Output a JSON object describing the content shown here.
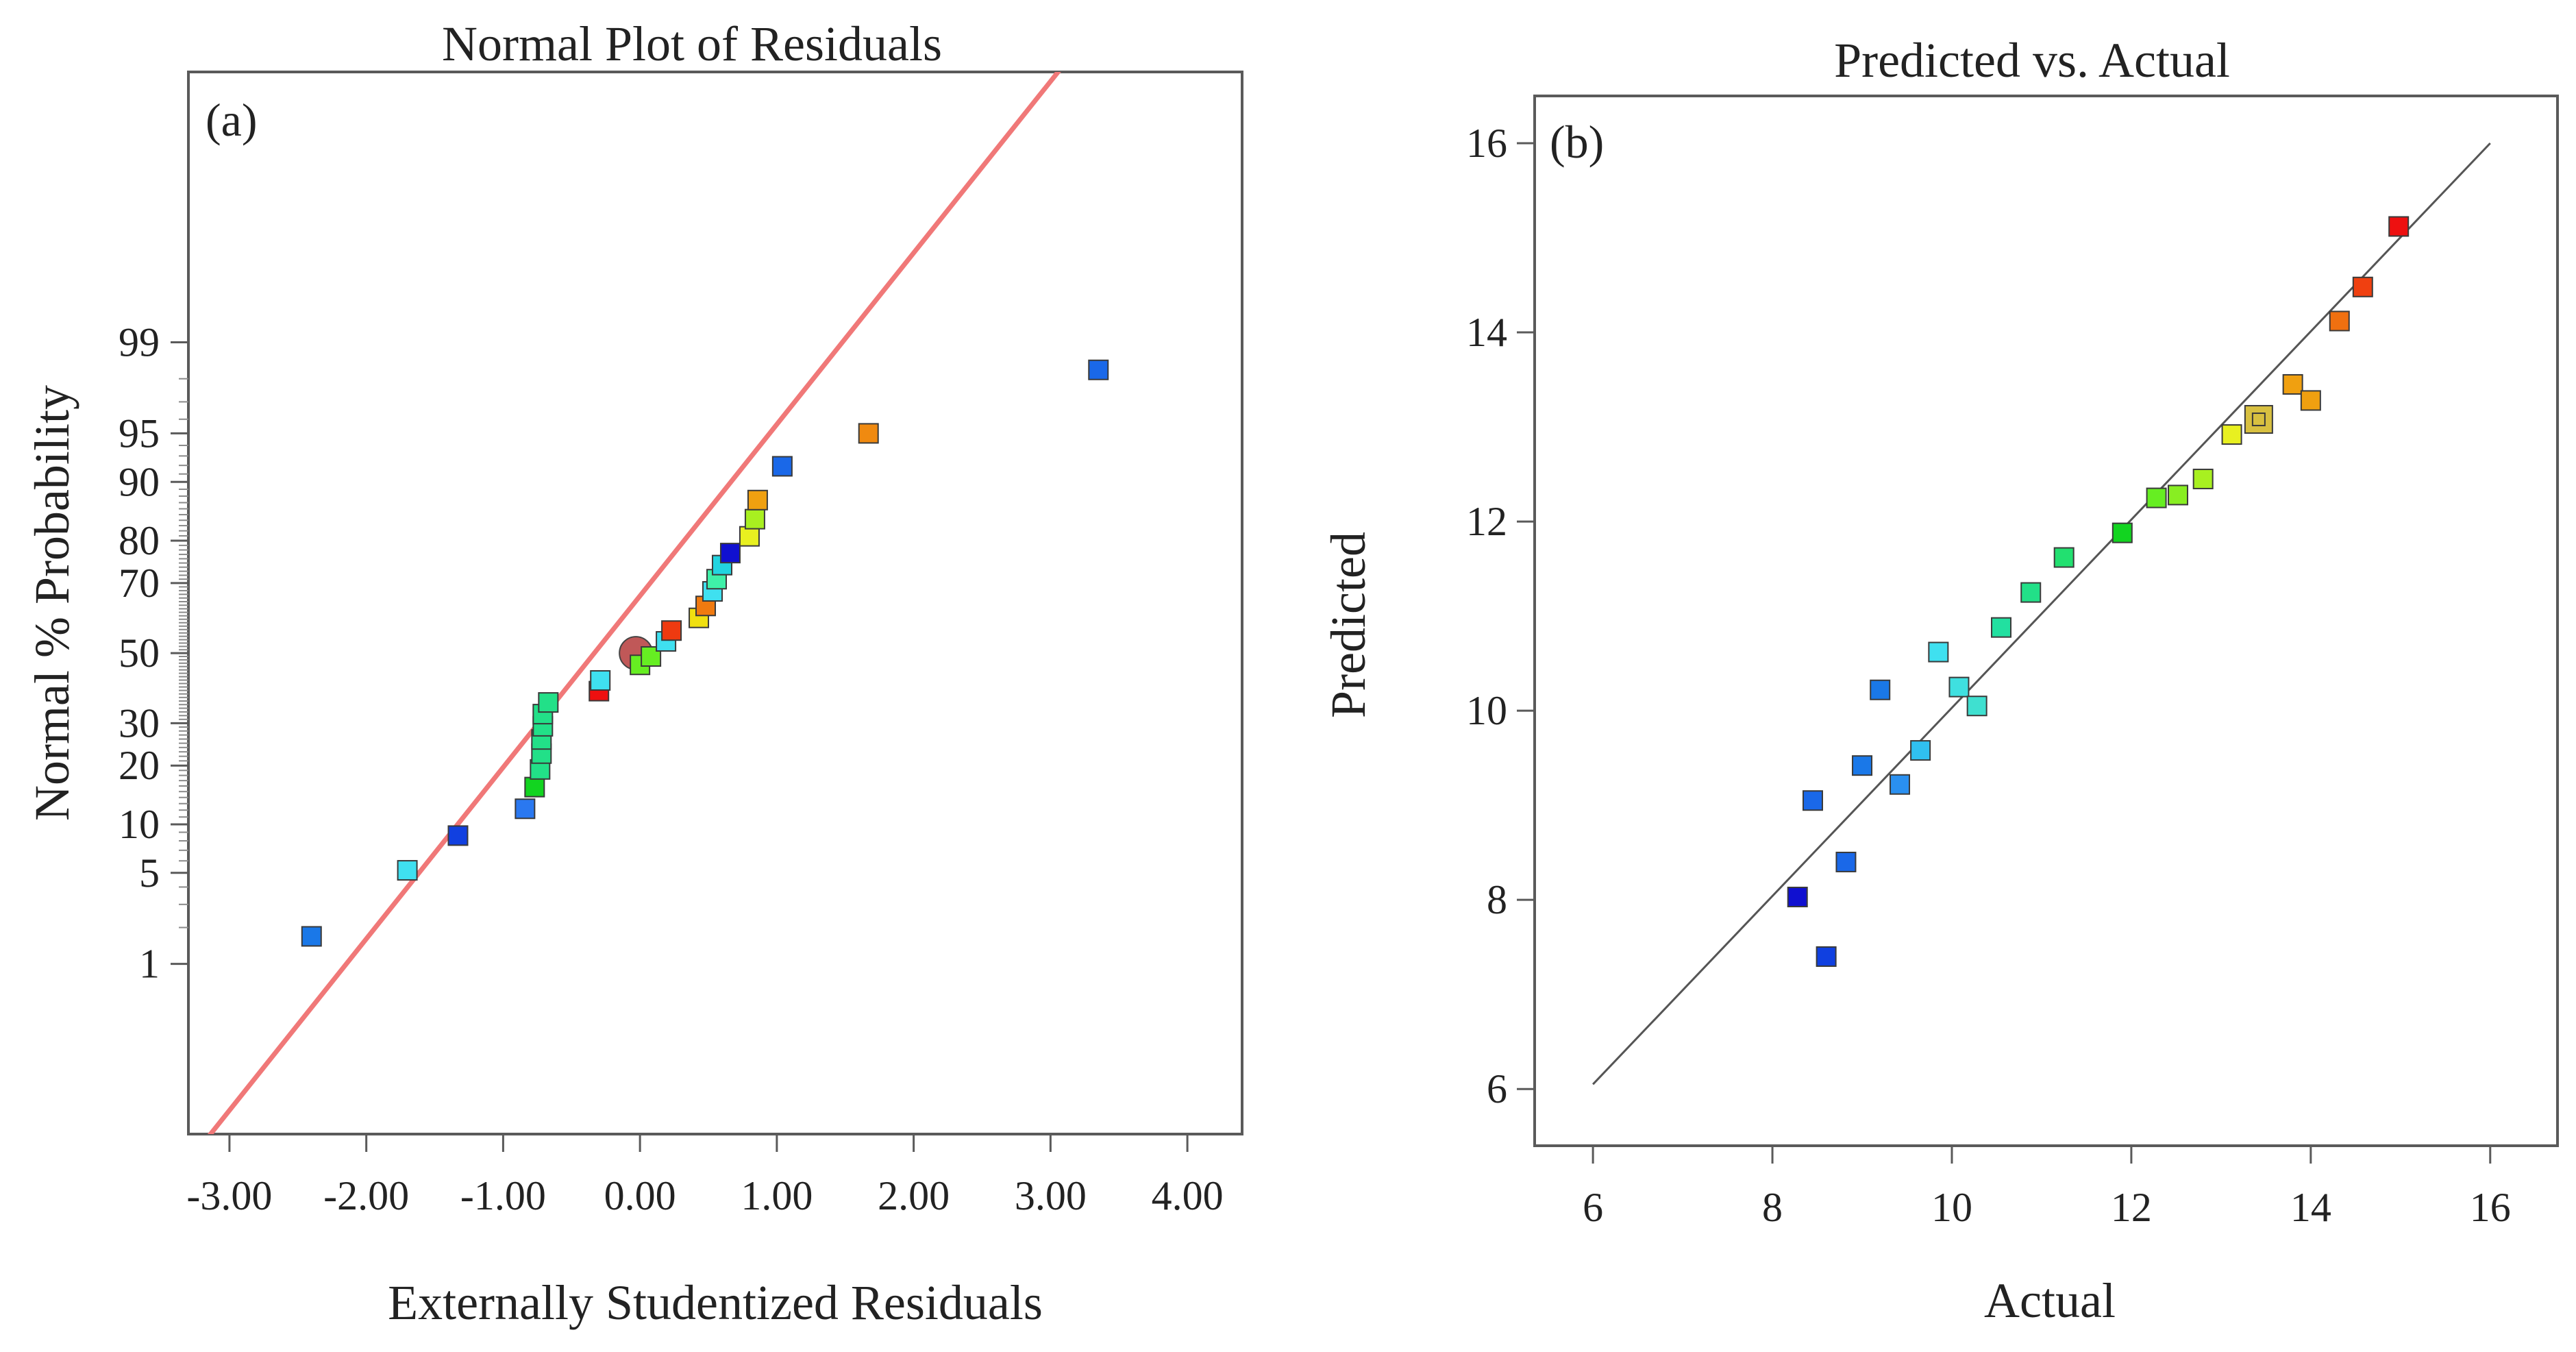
{
  "chart_data": [
    {
      "type": "scatter",
      "id": "normal-plot",
      "panel_label": "(a)",
      "title": "Normal Plot of Residuals",
      "xlabel": "Externally Studentized Residuals",
      "ylabel": "Normal % Probability",
      "xlim": [
        -3.3,
        4.4
      ],
      "xticks": [
        -3,
        -2,
        -1,
        0,
        1,
        2,
        3,
        4
      ],
      "xtick_labels": [
        "-3.00",
        "-2.00",
        "-1.00",
        "0.00",
        "1.00",
        "2.00",
        "3.00",
        "4.00"
      ],
      "yscale": "probit",
      "ylim_z": [
        -3.6,
        4.35
      ],
      "yticks": [
        1,
        5,
        10,
        20,
        30,
        50,
        70,
        80,
        90,
        95,
        99
      ],
      "ytick_labels": [
        "1",
        "5",
        "10",
        "20",
        "30",
        "50",
        "70",
        "80",
        "90",
        "95",
        "99"
      ],
      "reference_line": {
        "color": "#f07878",
        "points": [
          [
            -3.45,
            -4.0
          ],
          [
            3.25,
            4.6
          ]
        ]
      },
      "points": [
        {
          "x": -2.4,
          "p": 1.7,
          "color": "#1a78e8"
        },
        {
          "x": -1.7,
          "p": 5.2,
          "color": "#3fe0f0"
        },
        {
          "x": -1.33,
          "p": 8.6,
          "color": "#1140e0"
        },
        {
          "x": -0.84,
          "p": 12.2,
          "color": "#2a78f0"
        },
        {
          "x": -0.77,
          "p": 15.8,
          "color": "#12d420"
        },
        {
          "x": -0.73,
          "p": 19.2,
          "color": "#22e088"
        },
        {
          "x": -0.72,
          "p": 22.6,
          "color": "#22e088"
        },
        {
          "x": -0.72,
          "p": 25.9,
          "color": "#22e088"
        },
        {
          "x": -0.71,
          "p": 29.2,
          "color": "#22e088"
        },
        {
          "x": -0.71,
          "p": 32.4,
          "color": "#22e088"
        },
        {
          "x": -0.67,
          "p": 35.6,
          "color": "#22e088"
        },
        {
          "x": -0.3,
          "p": 38.8,
          "color": "#ee1010"
        },
        {
          "x": -0.29,
          "p": 41.9,
          "color": "#3fe0f0"
        },
        {
          "x": -0.03,
          "p": 50.0,
          "color": "#c05858",
          "large": true
        },
        {
          "x": 0.0,
          "p": 46.5,
          "color": "#66ee22"
        },
        {
          "x": 0.08,
          "p": 49.0,
          "color": "#66ee22"
        },
        {
          "x": 0.19,
          "p": 53.5,
          "color": "#3fe0f0"
        },
        {
          "x": 0.23,
          "p": 56.7,
          "color": "#ee3a10"
        },
        {
          "x": 0.43,
          "p": 60.4,
          "color": "#f0e010"
        },
        {
          "x": 0.48,
          "p": 63.8,
          "color": "#f07a10"
        },
        {
          "x": 0.53,
          "p": 67.8,
          "color": "#3fe0f0"
        },
        {
          "x": 0.56,
          "p": 71.0,
          "color": "#3ff0a8"
        },
        {
          "x": 0.6,
          "p": 74.5,
          "color": "#22d4e0"
        },
        {
          "x": 0.66,
          "p": 77.3,
          "color": "#1010d0"
        },
        {
          "x": 0.8,
          "p": 80.9,
          "color": "#e8f020"
        },
        {
          "x": 0.84,
          "p": 84.2,
          "color": "#a8f020"
        },
        {
          "x": 0.86,
          "p": 87.4,
          "color": "#f0a010"
        },
        {
          "x": 1.04,
          "p": 91.9,
          "color": "#1a68e8"
        },
        {
          "x": 1.67,
          "p": 95.0,
          "color": "#f08a10"
        },
        {
          "x": 3.35,
          "p": 98.3,
          "color": "#1a68e8"
        }
      ]
    },
    {
      "type": "scatter",
      "id": "predicted-vs-actual",
      "panel_label": "(b)",
      "title": "Predicted vs. Actual",
      "xlabel": "Actual",
      "ylabel": "Predicted",
      "xlim": [
        5.35,
        16.75
      ],
      "ylim": [
        5.4,
        16.5
      ],
      "xticks": [
        6,
        8,
        10,
        12,
        14,
        16
      ],
      "xtick_labels": [
        "6",
        "8",
        "10",
        "12",
        "14",
        "16"
      ],
      "yticks": [
        6,
        8,
        10,
        12,
        14,
        16
      ],
      "ytick_labels": [
        "6",
        "8",
        "10",
        "12",
        "14",
        "16"
      ],
      "reference_line": {
        "color": "#555555",
        "points": [
          [
            6.0,
            6.05
          ],
          [
            16.0,
            16.0
          ]
        ]
      },
      "points": [
        {
          "x": 8.28,
          "y": 8.03,
          "color": "#1010d0"
        },
        {
          "x": 8.45,
          "y": 9.05,
          "color": "#1a68e8"
        },
        {
          "x": 8.6,
          "y": 7.4,
          "color": "#1040e0"
        },
        {
          "x": 8.82,
          "y": 8.4,
          "color": "#1a68e8"
        },
        {
          "x": 9.0,
          "y": 9.42,
          "color": "#1a78e8"
        },
        {
          "x": 9.2,
          "y": 10.22,
          "color": "#1a78e8"
        },
        {
          "x": 9.42,
          "y": 9.22,
          "color": "#2a90f0"
        },
        {
          "x": 9.65,
          "y": 9.58,
          "color": "#30c0f0"
        },
        {
          "x": 9.85,
          "y": 10.62,
          "color": "#3fe0f0"
        },
        {
          "x": 10.08,
          "y": 10.25,
          "color": "#3fe0e0"
        },
        {
          "x": 10.28,
          "y": 10.05,
          "color": "#3fe0d0"
        },
        {
          "x": 10.55,
          "y": 10.88,
          "color": "#22e0a0"
        },
        {
          "x": 10.88,
          "y": 11.25,
          "color": "#22e088"
        },
        {
          "x": 11.25,
          "y": 11.62,
          "color": "#22e070"
        },
        {
          "x": 11.9,
          "y": 11.88,
          "color": "#12d420"
        },
        {
          "x": 12.28,
          "y": 12.25,
          "color": "#66ee22"
        },
        {
          "x": 12.52,
          "y": 12.28,
          "color": "#88ee22"
        },
        {
          "x": 12.8,
          "y": 12.45,
          "color": "#a8f020"
        },
        {
          "x": 13.12,
          "y": 12.92,
          "color": "#e8f020"
        },
        {
          "x": 13.42,
          "y": 13.08,
          "color": "#d8c040",
          "large": true
        },
        {
          "x": 13.8,
          "y": 13.45,
          "color": "#f0a010"
        },
        {
          "x": 14.0,
          "y": 13.28,
          "color": "#f0a010"
        },
        {
          "x": 14.32,
          "y": 14.12,
          "color": "#f07010"
        },
        {
          "x": 14.58,
          "y": 14.48,
          "color": "#f04010"
        },
        {
          "x": 14.98,
          "y": 15.12,
          "color": "#ee1010"
        }
      ]
    }
  ]
}
